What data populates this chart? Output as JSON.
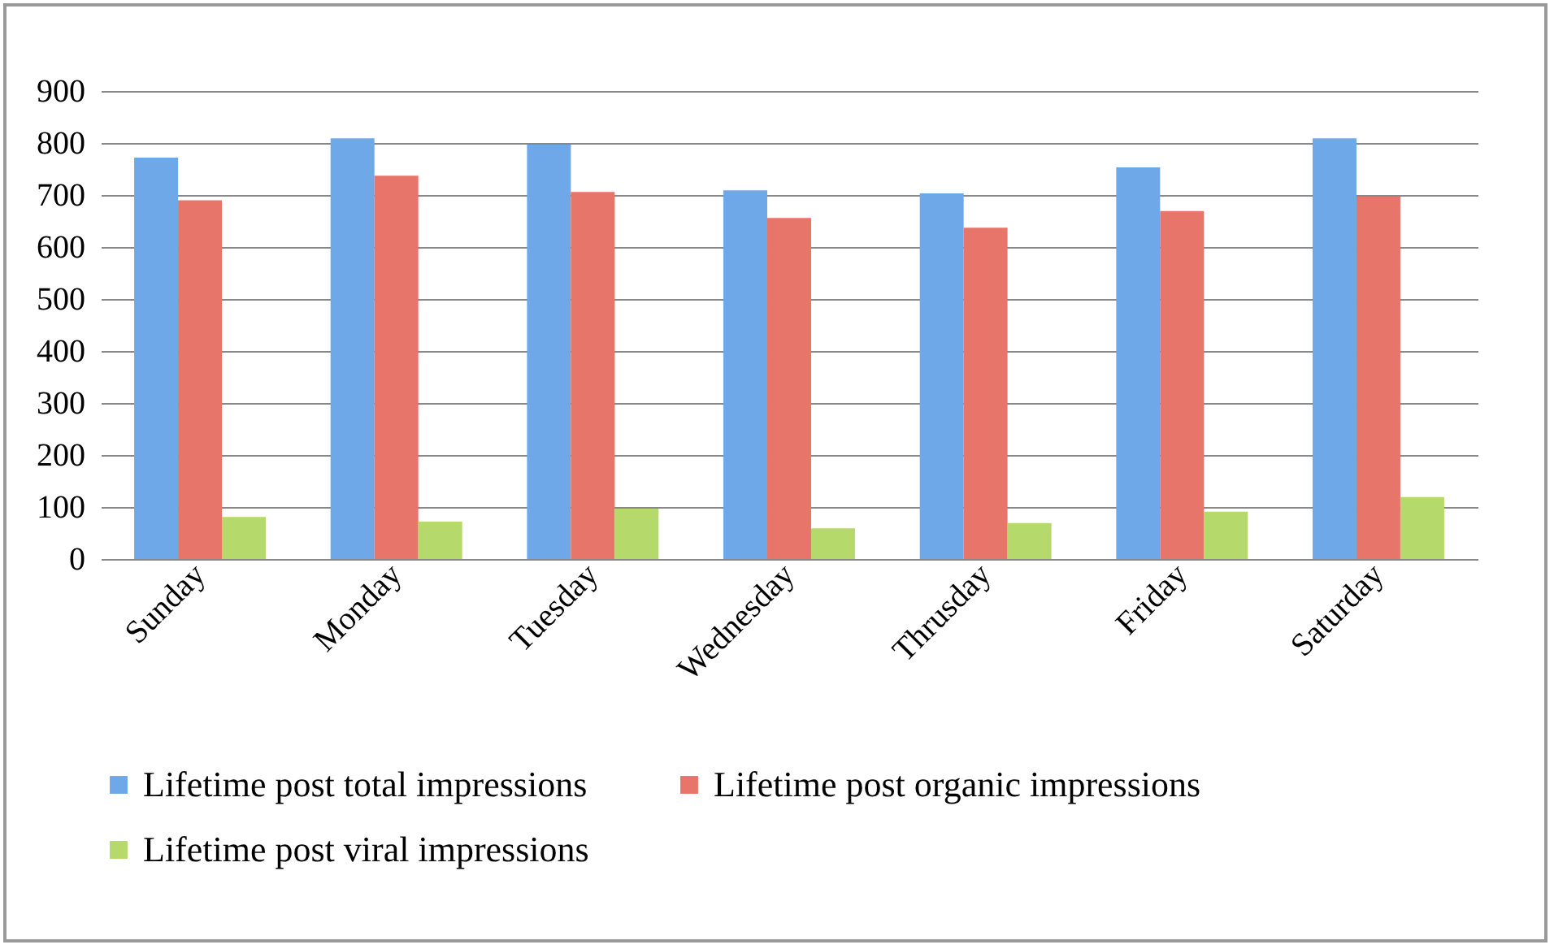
{
  "chart_data": {
    "type": "bar",
    "categories": [
      "Sunday",
      "Monday",
      "Tuesday",
      "Wednesday",
      "Thrusday",
      "Friday",
      "Saturday"
    ],
    "series": [
      {
        "name": "Lifetime post total impressions",
        "color": "#6fa8e8",
        "values": [
          772,
          809,
          797,
          709,
          703,
          753,
          809
        ]
      },
      {
        "name": "Lifetime post organic impressions",
        "color": "#e8756a",
        "values": [
          690,
          737,
          706,
          656,
          637,
          669,
          697
        ]
      },
      {
        "name": "Lifetime post viral impressions",
        "color": "#b5d96a",
        "values": [
          81,
          72,
          97,
          59,
          69,
          91,
          119
        ]
      }
    ],
    "ylim": [
      0,
      900
    ],
    "yticks": [
      0,
      100,
      200,
      300,
      400,
      500,
      600,
      700,
      800,
      900
    ],
    "grid": "y",
    "legend": "bottom"
  }
}
